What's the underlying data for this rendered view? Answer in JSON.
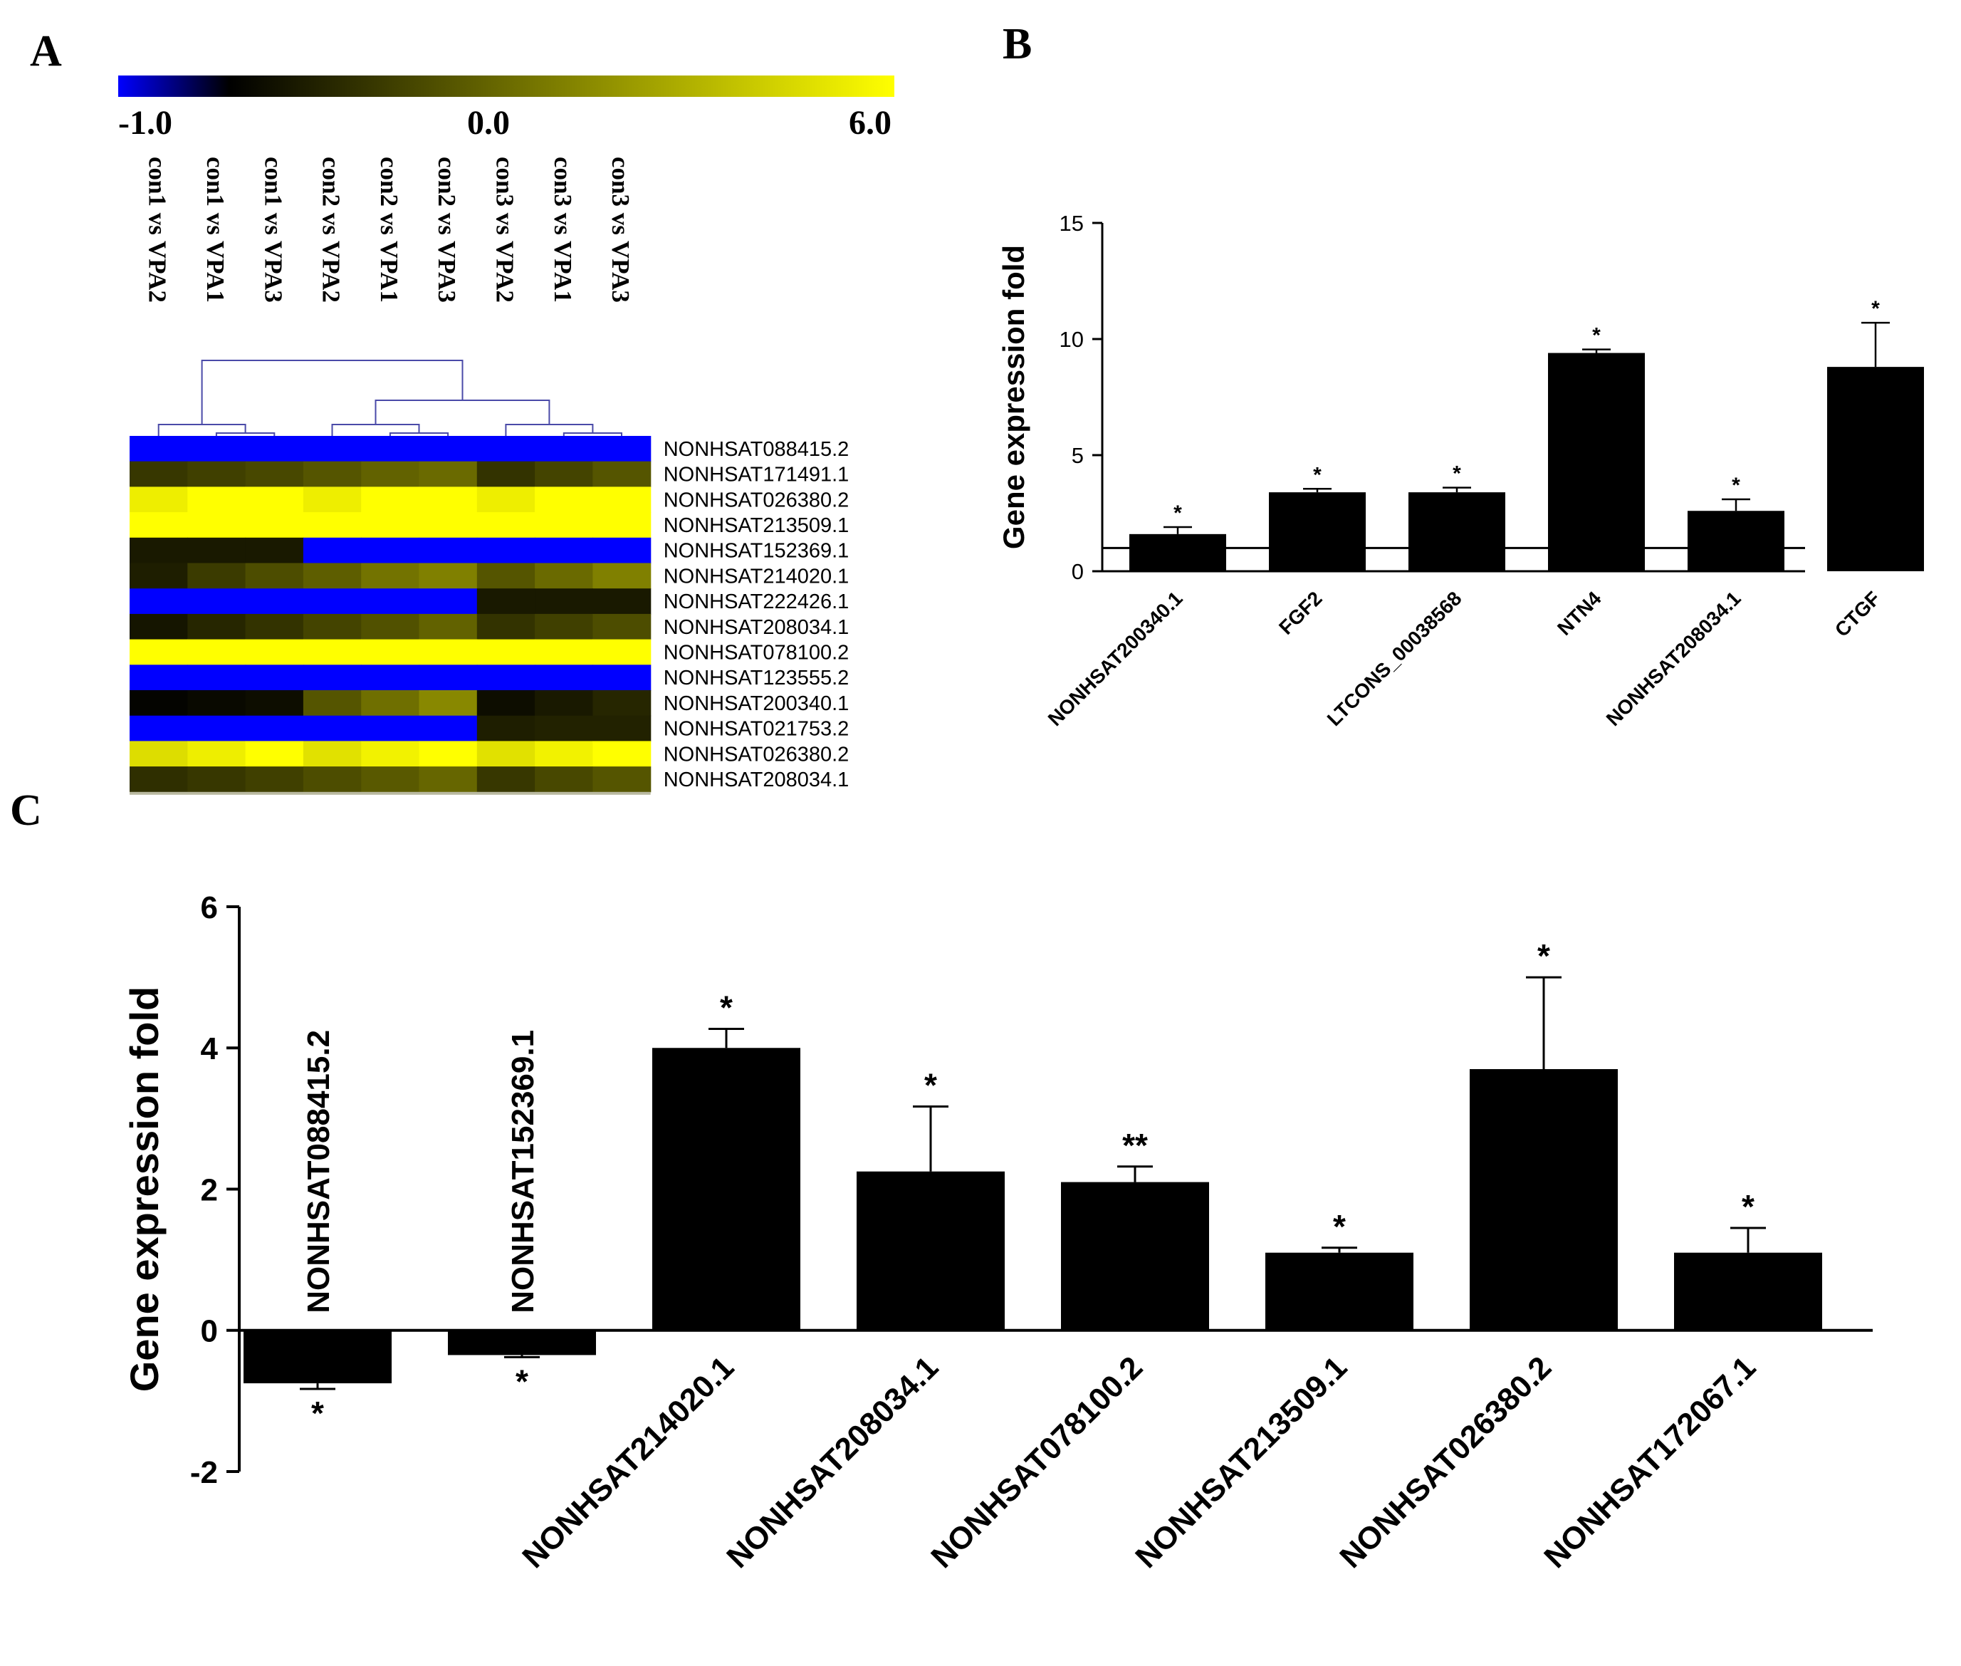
{
  "panels": {
    "a": "A",
    "b": "B",
    "c": "C"
  },
  "colors": {
    "low": "#0000ff",
    "mid": "#000000",
    "high": "#ffff00",
    "bar": "#000000",
    "dendrogram": "#4a4aa8"
  },
  "chart_data": [
    {
      "type": "heatmap",
      "panel": "A",
      "scale": {
        "min": -1.0,
        "mid": 0.0,
        "max": 6.0,
        "min_label": "-1.0",
        "mid_label": "0.0",
        "max_label": "6.0"
      },
      "columns": [
        "con1 vs VPA2",
        "con1 vs VPA1",
        "con1 vs VPA3",
        "con2 vs VPA2",
        "con2 vs VPA1",
        "con2 vs VPA3",
        "con3 vs VPA2",
        "con3 vs VPA1",
        "con3 vs VPA3"
      ],
      "rows": [
        "NONHSAT088415.2",
        "NONHSAT171491.1",
        "NONHSAT026380.2",
        "NONHSAT213509.1",
        "NONHSAT152369.1",
        "NONHSAT214020.1",
        "NONHSAT222426.1",
        "NONHSAT208034.1",
        "NONHSAT078100.2",
        "NONHSAT123555.2",
        "NONHSAT200340.1",
        "NONHSAT021753.2",
        "NONHSAT026380.2",
        "NONHSAT208034.1"
      ],
      "values": [
        [
          -1,
          -1,
          -1,
          -1,
          -1,
          -1,
          -1,
          -1,
          -1
        ],
        [
          1.3,
          1.5,
          1.7,
          2.0,
          2.3,
          2.5,
          1.2,
          1.6,
          2.0
        ],
        [
          5.6,
          6,
          6,
          5.6,
          6,
          6,
          5.6,
          6,
          6
        ],
        [
          6,
          6,
          6,
          6,
          6,
          6,
          6,
          6,
          6
        ],
        [
          0.6,
          0.6,
          0.6,
          -1,
          -1,
          -1,
          -1,
          -1,
          -1
        ],
        [
          0.7,
          1.4,
          1.8,
          2.2,
          2.7,
          3.0,
          2.0,
          2.5,
          3.0
        ],
        [
          -1,
          -1,
          -1,
          -1,
          -1,
          -1,
          0.6,
          0.6,
          0.6
        ],
        [
          0.5,
          0.9,
          1.2,
          1.6,
          1.9,
          2.3,
          1.2,
          1.5,
          1.8
        ],
        [
          6,
          6,
          6,
          6,
          6,
          6,
          6,
          6,
          6
        ],
        [
          -1,
          -1,
          -1,
          -1,
          -1,
          -1,
          -1,
          -1,
          -1
        ],
        [
          0.1,
          0.2,
          0.3,
          2.0,
          2.6,
          3.2,
          0.3,
          0.6,
          0.9
        ],
        [
          -1,
          -1,
          -1,
          -1,
          -1,
          -1,
          0.7,
          0.8,
          0.8
        ],
        [
          5.2,
          5.6,
          6,
          5.3,
          5.7,
          6,
          5.3,
          5.7,
          6
        ],
        [
          1.1,
          1.3,
          1.5,
          1.8,
          2.1,
          2.4,
          1.3,
          1.7,
          2.0
        ]
      ]
    },
    {
      "type": "bar",
      "panel": "B",
      "title": "",
      "xlabel": "",
      "ylabel": "Gene expression fold",
      "ylim": [
        0,
        15
      ],
      "yticks": [
        0,
        5,
        10,
        15
      ],
      "reference_line": 1,
      "categories": [
        "NONHSAT200340.1",
        "FGF2",
        "LTCONS_00038568",
        "NTN4",
        "NONHSAT208034.1",
        "CTGF"
      ],
      "values": [
        1.6,
        3.4,
        3.4,
        9.4,
        2.6,
        8.8
      ],
      "errors": [
        0.3,
        0.15,
        0.2,
        0.15,
        0.5,
        1.9
      ],
      "significance": [
        "*",
        "*",
        "*",
        "*",
        "*",
        "*"
      ]
    },
    {
      "type": "bar",
      "panel": "C",
      "title": "",
      "xlabel": "",
      "ylabel": "Gene expression fold",
      "ylim": [
        -2,
        6
      ],
      "yticks": [
        -2,
        0,
        2,
        4,
        6
      ],
      "categories": [
        "NONHSAT088415.2",
        "NONHSAT152369.1",
        "NONHSAT214020.1",
        "NONHSAT208034.1",
        "NONHSAT078100.2",
        "NONHSAT213509.1",
        "NONHSAT026380.2",
        "NONHSAT172067.1"
      ],
      "values": [
        -0.75,
        -0.35,
        4.0,
        2.25,
        2.1,
        1.1,
        3.7,
        1.1
      ],
      "errors": [
        0.08,
        0.03,
        0.27,
        0.92,
        0.22,
        0.07,
        1.3,
        0.35
      ],
      "significance": [
        "*",
        "*",
        "*",
        "*",
        "**",
        "*",
        "*",
        "*"
      ]
    }
  ]
}
